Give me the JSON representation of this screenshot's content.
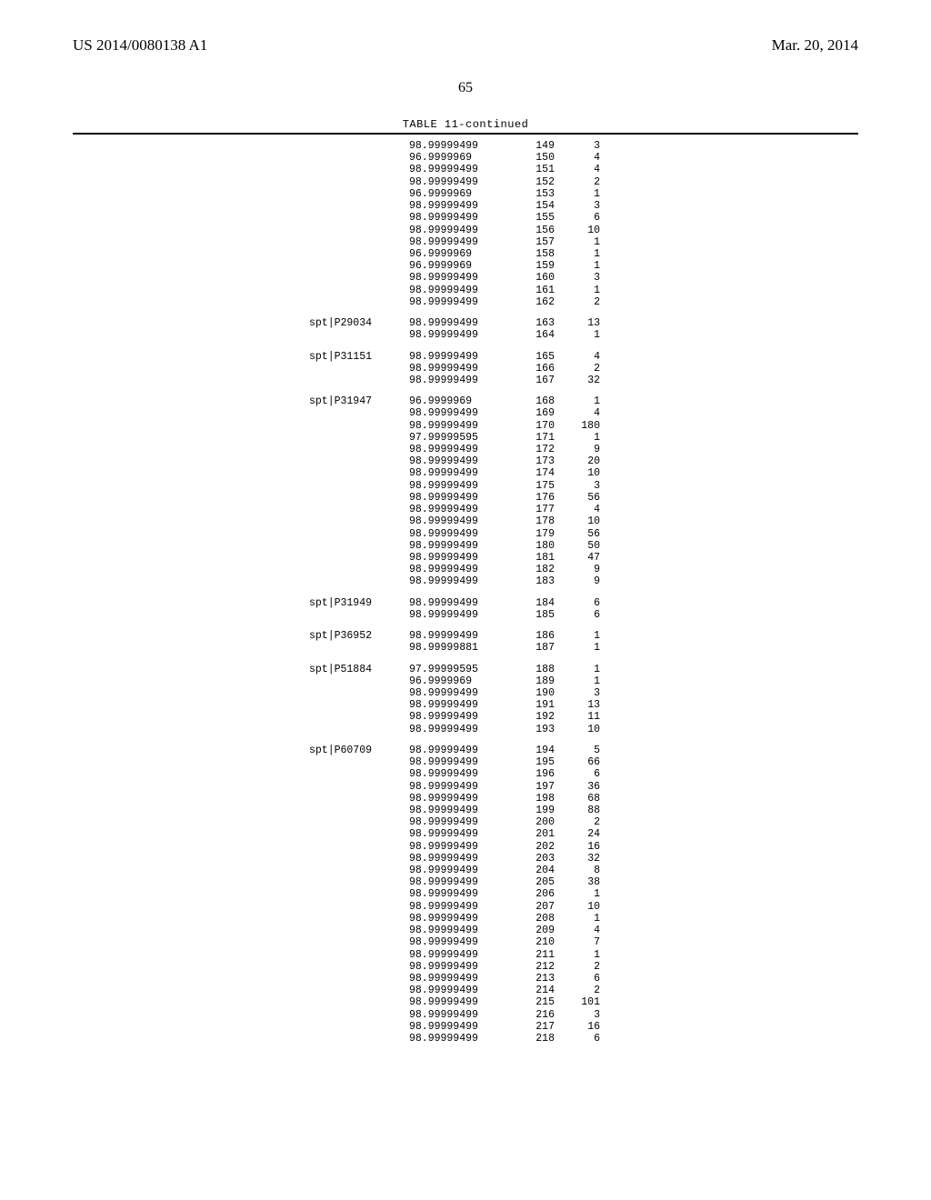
{
  "header": {
    "pub_id": "US 2014/0080138 A1",
    "pub_date": "Mar. 20, 2014",
    "page_number": "65"
  },
  "table": {
    "caption": "TABLE 11-continued",
    "font_family": "Courier New",
    "font_size_pt": 9,
    "text_color": "#000000",
    "background_color": "#ffffff",
    "rule_color": "#000000",
    "columns": [
      "label",
      "value",
      "index",
      "count"
    ],
    "col_align": [
      "left",
      "left",
      "right",
      "right"
    ],
    "groups": [
      {
        "label": "",
        "rows": [
          [
            "98.99999499",
            149,
            3
          ],
          [
            "96.9999969",
            150,
            4
          ],
          [
            "98.99999499",
            151,
            4
          ],
          [
            "98.99999499",
            152,
            2
          ],
          [
            "96.9999969",
            153,
            1
          ],
          [
            "98.99999499",
            154,
            3
          ],
          [
            "98.99999499",
            155,
            6
          ],
          [
            "98.99999499",
            156,
            10
          ],
          [
            "98.99999499",
            157,
            1
          ],
          [
            "96.9999969",
            158,
            1
          ],
          [
            "96.9999969",
            159,
            1
          ],
          [
            "98.99999499",
            160,
            3
          ],
          [
            "98.99999499",
            161,
            1
          ],
          [
            "98.99999499",
            162,
            2
          ]
        ]
      },
      {
        "label": "spt|P29034",
        "rows": [
          [
            "98.99999499",
            163,
            13
          ],
          [
            "98.99999499",
            164,
            1
          ]
        ]
      },
      {
        "label": "spt|P31151",
        "rows": [
          [
            "98.99999499",
            165,
            4
          ],
          [
            "98.99999499",
            166,
            2
          ],
          [
            "98.99999499",
            167,
            32
          ]
        ]
      },
      {
        "label": "spt|P31947",
        "rows": [
          [
            "96.9999969",
            168,
            1
          ],
          [
            "98.99999499",
            169,
            4
          ],
          [
            "98.99999499",
            170,
            180
          ],
          [
            "97.99999595",
            171,
            1
          ],
          [
            "98.99999499",
            172,
            9
          ],
          [
            "98.99999499",
            173,
            20
          ],
          [
            "98.99999499",
            174,
            10
          ],
          [
            "98.99999499",
            175,
            3
          ],
          [
            "98.99999499",
            176,
            56
          ],
          [
            "98.99999499",
            177,
            4
          ],
          [
            "98.99999499",
            178,
            10
          ],
          [
            "98.99999499",
            179,
            56
          ],
          [
            "98.99999499",
            180,
            50
          ],
          [
            "98.99999499",
            181,
            47
          ],
          [
            "98.99999499",
            182,
            9
          ],
          [
            "98.99999499",
            183,
            9
          ]
        ]
      },
      {
        "label": "spt|P31949",
        "rows": [
          [
            "98.99999499",
            184,
            6
          ],
          [
            "98.99999499",
            185,
            6
          ]
        ]
      },
      {
        "label": "spt|P36952",
        "rows": [
          [
            "98.99999499",
            186,
            1
          ],
          [
            "98.99999881",
            187,
            1
          ]
        ]
      },
      {
        "label": "spt|P51884",
        "rows": [
          [
            "97.99999595",
            188,
            1
          ],
          [
            "96.9999969",
            189,
            1
          ],
          [
            "98.99999499",
            190,
            3
          ],
          [
            "98.99999499",
            191,
            13
          ],
          [
            "98.99999499",
            192,
            11
          ],
          [
            "98.99999499",
            193,
            10
          ]
        ]
      },
      {
        "label": "spt|P60709",
        "rows": [
          [
            "98.99999499",
            194,
            5
          ],
          [
            "98.99999499",
            195,
            66
          ],
          [
            "98.99999499",
            196,
            6
          ],
          [
            "98.99999499",
            197,
            36
          ],
          [
            "98.99999499",
            198,
            68
          ],
          [
            "98.99999499",
            199,
            88
          ],
          [
            "98.99999499",
            200,
            2
          ],
          [
            "98.99999499",
            201,
            24
          ],
          [
            "98.99999499",
            202,
            16
          ],
          [
            "98.99999499",
            203,
            32
          ],
          [
            "98.99999499",
            204,
            8
          ],
          [
            "98.99999499",
            205,
            38
          ],
          [
            "98.99999499",
            206,
            1
          ],
          [
            "98.99999499",
            207,
            10
          ],
          [
            "98.99999499",
            208,
            1
          ],
          [
            "98.99999499",
            209,
            4
          ],
          [
            "98.99999499",
            210,
            7
          ],
          [
            "98.99999499",
            211,
            1
          ],
          [
            "98.99999499",
            212,
            2
          ],
          [
            "98.99999499",
            213,
            6
          ],
          [
            "98.99999499",
            214,
            2
          ],
          [
            "98.99999499",
            215,
            101
          ],
          [
            "98.99999499",
            216,
            3
          ],
          [
            "98.99999499",
            217,
            16
          ],
          [
            "98.99999499",
            218,
            6
          ]
        ]
      }
    ]
  }
}
